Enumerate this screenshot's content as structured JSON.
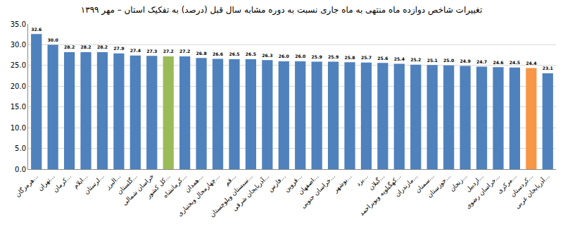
{
  "chart_data": {
    "type": "bar",
    "title": "تغییرات شاخص دوازده ماه منتهی به ماه جاری نسبت به دوره مشابه سال قبل (درصد) به تفکیک استان – مهر ۱۳۹۹",
    "categories": [
      "هرمزگان...",
      "تهران...",
      "کرمان...",
      "ایلام...",
      "لرستان...",
      "البرز...",
      "گلستان...",
      "خراسان شمالی",
      "کل کشور...",
      "کرمانشاه...",
      "همدان...",
      "چهارمحال وبختیاری...",
      "قم...",
      "سیستان وبلوچستان...",
      "آذربایجان شرقی...",
      "فارس...",
      "قزوین...",
      "اصفهان...",
      "خراسان جنوبی...",
      "بوشهر...",
      "یزد...",
      "گیلان...",
      "کهگیلویه وبویراحمد...",
      "مازندران...",
      "سمنان...",
      "خوزستان...",
      "زنجان...",
      "اردبیل...",
      "خراسان رضوی...",
      "مرکزی...",
      "کردستان...",
      "آذربایجان غربی..."
    ],
    "values": [
      32.6,
      30.0,
      28.2,
      28.2,
      28.2,
      27.9,
      27.4,
      27.3,
      27.2,
      27.2,
      26.8,
      26.6,
      26.5,
      26.5,
      26.3,
      26.0,
      26.0,
      25.9,
      25.9,
      25.8,
      25.7,
      25.6,
      25.4,
      25.2,
      25.1,
      25.0,
      24.9,
      24.7,
      24.6,
      24.5,
      24.4,
      23.1
    ],
    "value_labels": [
      "32.6",
      "30.0",
      "28.2",
      "28.2",
      "28.2",
      "27.9",
      "27.4",
      "27.3",
      "27.2",
      "27.2",
      "26.8",
      "26.6",
      "26.5",
      "26.5",
      "26.3",
      "26.0",
      "26.0",
      "25.9",
      "25.9",
      "25.8",
      "25.7",
      "25.6",
      "25.4",
      "25.2",
      "25.1",
      "25.0",
      "24.9",
      "24.7",
      "24.6",
      "24.5",
      "24.4",
      "23.1"
    ],
    "colors": [
      "#4f81bd",
      "#4f81bd",
      "#4f81bd",
      "#4f81bd",
      "#4f81bd",
      "#4f81bd",
      "#4f81bd",
      "#4f81bd",
      "#9bbb59",
      "#4f81bd",
      "#4f81bd",
      "#4f81bd",
      "#4f81bd",
      "#4f81bd",
      "#4f81bd",
      "#4f81bd",
      "#4f81bd",
      "#4f81bd",
      "#4f81bd",
      "#4f81bd",
      "#4f81bd",
      "#4f81bd",
      "#4f81bd",
      "#4f81bd",
      "#4f81bd",
      "#4f81bd",
      "#4f81bd",
      "#4f81bd",
      "#4f81bd",
      "#4f81bd",
      "#f79646",
      "#4f81bd"
    ],
    "ylim": [
      0,
      35
    ],
    "yticks": [
      {
        "value": 0,
        "label": "0.0"
      },
      {
        "value": 5,
        "label": "5.0"
      },
      {
        "value": 10,
        "label": "10.0"
      },
      {
        "value": 15,
        "label": "15.0"
      },
      {
        "value": 20,
        "label": "20.0"
      },
      {
        "value": 25,
        "label": "25.0"
      },
      {
        "value": 30,
        "label": "30.0"
      },
      {
        "value": 35,
        "label": "35.0"
      }
    ],
    "grid": true,
    "data_labels": true
  }
}
